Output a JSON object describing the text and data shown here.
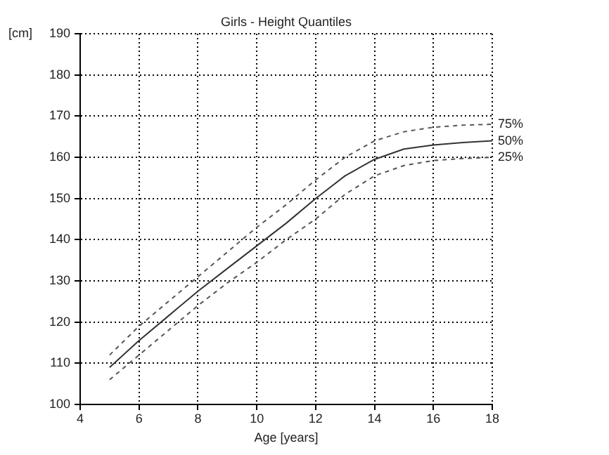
{
  "chart_data": {
    "type": "line",
    "title": "Girls - Height Quantiles",
    "xlabel": "Age [years]",
    "ylabel": "[cm]",
    "x": [
      5,
      6,
      7,
      8,
      9,
      10,
      11,
      12,
      13,
      14,
      15,
      16,
      17,
      18
    ],
    "series": [
      {
        "name": "75%",
        "color": "#555555",
        "line_style": "dashed",
        "values": [
          112,
          119,
          125,
          131,
          137,
          143,
          148.5,
          154.5,
          160,
          164,
          166.2,
          167.3,
          167.8,
          168
        ]
      },
      {
        "name": "50%",
        "color": "#333333",
        "line_style": "solid",
        "values": [
          109,
          115.5,
          121.5,
          127.5,
          133,
          138.5,
          144,
          150,
          155.5,
          159.5,
          162,
          163,
          163.6,
          164
        ]
      },
      {
        "name": "25%",
        "color": "#555555",
        "line_style": "dashed",
        "values": [
          106,
          112,
          118,
          124,
          129.5,
          134.5,
          140,
          145,
          151,
          155.5,
          158,
          159.2,
          159.7,
          160
        ]
      }
    ],
    "xlim": [
      4,
      18
    ],
    "xticks": [
      4,
      6,
      8,
      10,
      12,
      14,
      16,
      18
    ],
    "ylim": [
      100,
      190
    ],
    "yticks": [
      100,
      110,
      120,
      130,
      140,
      150,
      160,
      170,
      180,
      190
    ],
    "grid": true,
    "legend": false,
    "marker": "none"
  }
}
